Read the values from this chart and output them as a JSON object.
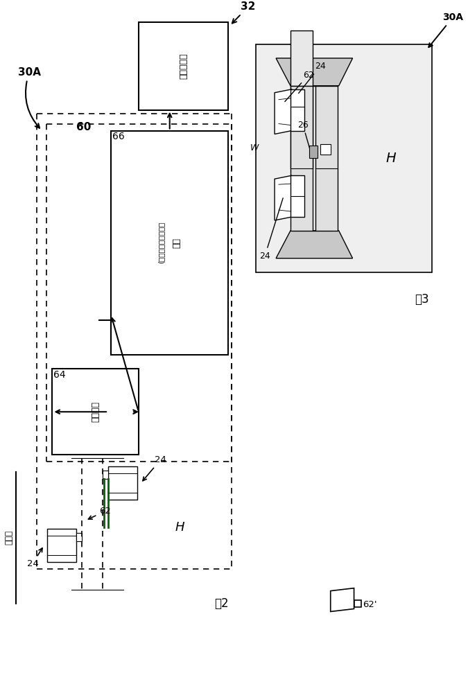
{
  "bg_color": "#ffffff",
  "fig_label2": "图2",
  "fig_label3": "图3",
  "label_30A": "30A",
  "label_60": "60",
  "label_32": "32",
  "label_64": "64",
  "label_66": "66",
  "label_24": "24",
  "label_62": "62",
  "label_62prime": "62'",
  "label_26": "26",
  "label_W": "W",
  "label_H_fig3": "H",
  "label_H_fig2": "H",
  "box_elevator_ctrl_text": "电梯控制器",
  "box_processing_line1": "处理",
  "box_processing_line2": "(检测，追踪和计数）",
  "box_data_capture_text": "数据捕获",
  "elevator_door_label": "电梯门",
  "fig3_bg": "#f0f0f0",
  "fig3_door_bg": "#d8d8d8",
  "fig3_door_top": "#c8c8c8"
}
